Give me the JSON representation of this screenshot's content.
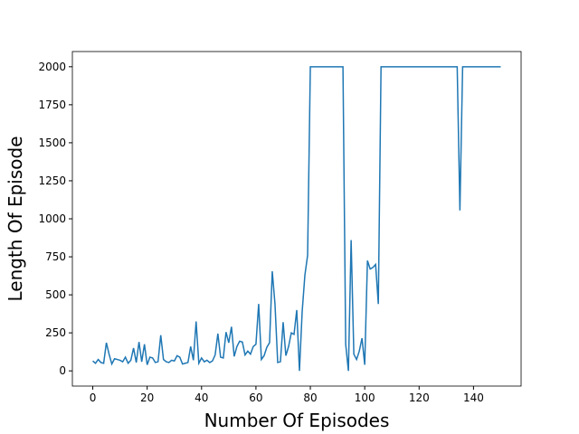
{
  "chart_data": {
    "type": "line",
    "x_label": "Number Of Episodes",
    "y_label": "Length Of Episode",
    "x": [
      0,
      1,
      2,
      3,
      4,
      5,
      6,
      7,
      8,
      9,
      10,
      11,
      12,
      13,
      14,
      15,
      16,
      17,
      18,
      19,
      20,
      21,
      22,
      23,
      24,
      25,
      26,
      27,
      28,
      29,
      30,
      31,
      32,
      33,
      34,
      35,
      36,
      37,
      38,
      39,
      40,
      41,
      42,
      43,
      44,
      45,
      46,
      47,
      48,
      49,
      50,
      51,
      52,
      53,
      54,
      55,
      56,
      57,
      58,
      59,
      60,
      61,
      62,
      63,
      64,
      65,
      66,
      67,
      68,
      69,
      70,
      71,
      72,
      73,
      74,
      75,
      76,
      77,
      78,
      79,
      80,
      81,
      82,
      83,
      84,
      85,
      86,
      87,
      88,
      89,
      90,
      91,
      92,
      93,
      94,
      95,
      96,
      97,
      98,
      99,
      100,
      101,
      102,
      103,
      104,
      105,
      106,
      107,
      108,
      109,
      110,
      111,
      112,
      113,
      114,
      115,
      116,
      117,
      118,
      119,
      120,
      121,
      122,
      123,
      124,
      125,
      126,
      127,
      128,
      129,
      130,
      131,
      132,
      133,
      134,
      135,
      136,
      137,
      138,
      139,
      140,
      141,
      142,
      143,
      144,
      145,
      146,
      147,
      148,
      149,
      150
    ],
    "series": [
      {
        "color": "#1f77b4",
        "values": [
          65,
          50,
          75,
          55,
          50,
          185,
          110,
          45,
          80,
          75,
          70,
          60,
          90,
          50,
          70,
          150,
          55,
          190,
          60,
          175,
          40,
          90,
          85,
          55,
          60,
          235,
          75,
          60,
          55,
          70,
          65,
          100,
          90,
          45,
          50,
          55,
          160,
          70,
          325,
          50,
          85,
          60,
          70,
          55,
          65,
          105,
          245,
          90,
          85,
          255,
          185,
          290,
          95,
          160,
          195,
          190,
          105,
          130,
          110,
          160,
          175,
          440,
          75,
          100,
          155,
          185,
          655,
          440,
          55,
          60,
          320,
          100,
          160,
          250,
          240,
          400,
          0,
          390,
          630,
          760,
          2000,
          2000,
          2000,
          2000,
          2000,
          2000,
          2000,
          2000,
          2000,
          2000,
          2000,
          2000,
          2000,
          175,
          0,
          860,
          110,
          75,
          130,
          215,
          40,
          725,
          670,
          680,
          700,
          440,
          2000,
          2000,
          2000,
          2000,
          2000,
          2000,
          2000,
          2000,
          2000,
          2000,
          2000,
          2000,
          2000,
          2000,
          2000,
          2000,
          2000,
          2000,
          2000,
          2000,
          2000,
          2000,
          2000,
          2000,
          2000,
          2000,
          2000,
          2000,
          2000,
          1055,
          2000,
          2000,
          2000,
          2000,
          2000,
          2000,
          2000,
          2000,
          2000,
          2000,
          2000,
          2000,
          2000,
          2000,
          2000
        ]
      }
    ],
    "xlim": [
      -7.5,
      157.5
    ],
    "ylim": [
      -100,
      2100
    ],
    "xticks": [
      0,
      20,
      40,
      60,
      80,
      100,
      120,
      140
    ],
    "yticks": [
      0,
      250,
      500,
      750,
      1000,
      1250,
      1500,
      1750,
      2000
    ]
  }
}
